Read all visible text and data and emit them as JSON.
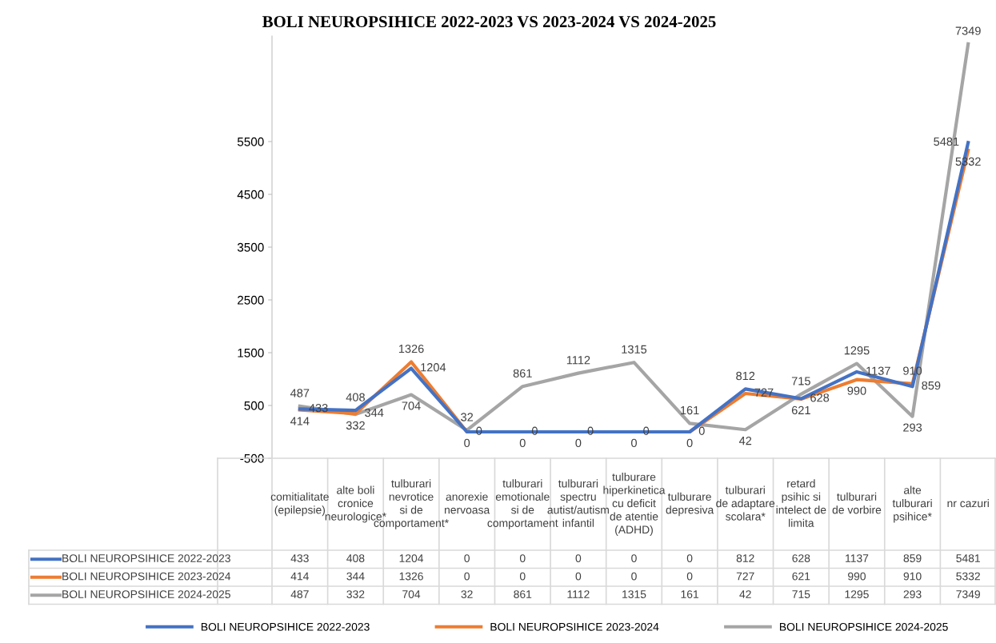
{
  "chart_data": [
    {
      "type": "line",
      "title": "BOLI NEUROPSIHICE 2022-2023 VS 2023-2024 VS 2024-2025",
      "categories": [
        null,
        null,
        null,
        null,
        null,
        null,
        null,
        null,
        null,
        null,
        null,
        null,
        null
      ],
      "series": [
        {
          "name": "BOLI NEUROPSIHICE 2022-2023",
          "color": "#4472c4",
          "values": [
            433,
            408,
            1204,
            0,
            0,
            0,
            0,
            0,
            812,
            628,
            1137,
            859,
            5481
          ],
          "value_labels": [
            "433",
            "408",
            "1204",
            "0",
            "0",
            "0",
            "0",
            "0",
            "812",
            "628",
            "1137",
            "859",
            "5481"
          ]
        },
        {
          "name": "BOLI NEUROPSIHICE 2023-2024",
          "color": "#ed7d31",
          "values": [
            414,
            344,
            1326,
            0,
            0,
            0,
            0,
            0,
            727,
            621,
            990,
            910,
            5332
          ],
          "value_labels": [
            "414",
            "344",
            "1326",
            "0",
            "0",
            "0",
            "0",
            "0",
            "727",
            "621",
            "990",
            "910",
            "5332"
          ]
        },
        {
          "name": "BOLI NEUROPSIHICE 2024-2025",
          "color": "#a5a5a5",
          "values": [
            487,
            332,
            704,
            32,
            861,
            1112,
            1315,
            161,
            42,
            715,
            1295,
            293,
            7349
          ],
          "value_labels": [
            "487",
            "332",
            "704",
            "32",
            "861",
            "1112",
            "1315",
            "161",
            "42",
            "715",
            "1295",
            "293",
            "7349"
          ]
        }
      ],
      "ylim": [
        -500,
        7500
      ],
      "yticks": [
        -500,
        500,
        1500,
        2500,
        3500,
        4500,
        5500
      ],
      "legend": "bottom",
      "line_style": "solid"
    },
    {
      "type": "other",
      "categories": [
        "comitialitate (epilepsie)",
        "alte boli cronice neurologice*",
        "tulburari nevrotice si de comportament*",
        "anorexie nervoasa",
        "tulburari emotionale si de comportament",
        "tulburari spectru autist/autism infantil",
        "tulburare hiperkinetica cu deficit de atentie (ADHD)",
        "tulburare depresiva",
        "tulburari de adaptare scolara*",
        "retard psihic si intelect de limita",
        "tulburari de vorbire",
        "alte tulburari psihice*",
        "nr cazuri"
      ],
      "series": [
        {
          "name": "BOLI NEUROPSIHICE 2022-2023",
          "color": "#4472c4",
          "values": [
            433,
            408,
            1204,
            0,
            0,
            0,
            0,
            0,
            812,
            628,
            1137,
            859,
            5481
          ]
        },
        {
          "name": "BOLI NEUROPSIHICE 2023-2024",
          "color": "#ed7d31",
          "values": [
            414,
            344,
            1326,
            0,
            0,
            0,
            0,
            0,
            727,
            621,
            990,
            910,
            5332
          ]
        },
        {
          "name": "BOLI NEUROPSIHICE 2024-2025",
          "color": "#a5a5a5",
          "values": [
            487,
            332,
            704,
            32,
            861,
            1112,
            1315,
            161,
            42,
            715,
            1295,
            293,
            7349
          ]
        }
      ],
      "data_labels": true
    }
  ]
}
